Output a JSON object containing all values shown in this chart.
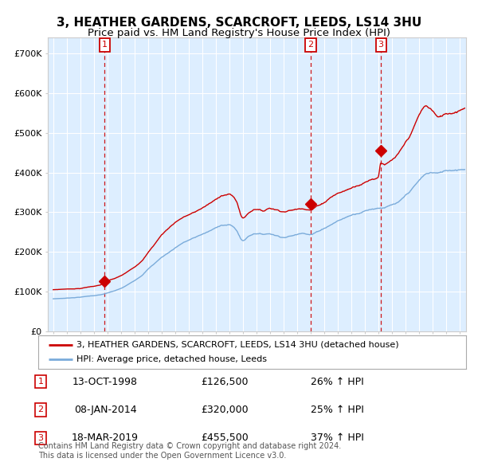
{
  "title": "3, HEATHER GARDENS, SCARCROFT, LEEDS, LS14 3HU",
  "subtitle": "Price paid vs. HM Land Registry's House Price Index (HPI)",
  "bg_color": "#ddeeff",
  "red_line_color": "#cc0000",
  "blue_line_color": "#7aabda",
  "vline_color": "#cc0000",
  "sale_marker_color": "#cc0000",
  "sales": [
    {
      "num": 1,
      "date_x": 1998.79,
      "price": 126500
    },
    {
      "num": 2,
      "date_x": 2014.03,
      "price": 320000
    },
    {
      "num": 3,
      "date_x": 2019.21,
      "price": 455500
    }
  ],
  "ylabel_ticks": [
    "£0",
    "£100K",
    "£200K",
    "£300K",
    "£400K",
    "£500K",
    "£600K",
    "£700K"
  ],
  "ytick_values": [
    0,
    100000,
    200000,
    300000,
    400000,
    500000,
    600000,
    700000
  ],
  "ylim": [
    0,
    740000
  ],
  "xlim_start": 1994.6,
  "xlim_end": 2025.5,
  "legend_red_label": "3, HEATHER GARDENS, SCARCROFT, LEEDS, LS14 3HU (detached house)",
  "legend_blue_label": "HPI: Average price, detached house, Leeds",
  "footer": "Contains HM Land Registry data © Crown copyright and database right 2024.\nThis data is licensed under the Open Government Licence v3.0.",
  "table_rows": [
    {
      "num": 1,
      "date": "13-OCT-1998",
      "price": "£126,500",
      "pct": "26% ↑ HPI"
    },
    {
      "num": 2,
      "date": "08-JAN-2014",
      "price": "£320,000",
      "pct": "25% ↑ HPI"
    },
    {
      "num": 3,
      "date": "18-MAR-2019",
      "price": "£455,500",
      "pct": "37% ↑ HPI"
    }
  ],
  "box_color": "#cc0000",
  "title_fontsize": 11,
  "subtitle_fontsize": 9.5,
  "tick_fontsize": 8,
  "legend_fontsize": 8,
  "table_fontsize": 9,
  "footer_fontsize": 7
}
